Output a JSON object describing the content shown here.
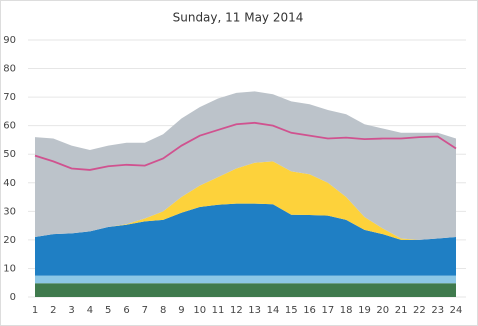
{
  "chart_data": {
    "type": "area",
    "stacked": true,
    "title": "Sunday, 11 May 2014",
    "x": [
      1,
      2,
      3,
      4,
      5,
      6,
      7,
      8,
      9,
      10,
      11,
      12,
      13,
      14,
      15,
      16,
      17,
      18,
      19,
      20,
      21,
      22,
      23,
      24
    ],
    "xlim": [
      1,
      24
    ],
    "xticks": [
      1,
      2,
      3,
      4,
      5,
      6,
      7,
      8,
      9,
      10,
      11,
      12,
      13,
      14,
      15,
      16,
      17,
      18,
      19,
      20,
      21,
      22,
      23,
      24
    ],
    "ylim": [
      0,
      90
    ],
    "yticks": [
      0,
      10,
      20,
      30,
      40,
      50,
      60,
      70,
      80,
      90
    ],
    "grid": true,
    "series": [
      {
        "color": "#3f7a4d",
        "values": [
          4.8,
          4.8,
          4.8,
          4.8,
          4.8,
          4.8,
          4.8,
          4.8,
          4.8,
          4.8,
          4.8,
          4.8,
          4.8,
          4.8,
          4.8,
          4.8,
          4.8,
          4.8,
          4.8,
          4.8,
          4.8,
          4.8,
          4.8,
          4.8
        ]
      },
      {
        "color": "#8cc7e6",
        "values": [
          2.7,
          2.7,
          2.7,
          2.7,
          2.7,
          2.7,
          2.7,
          2.7,
          2.7,
          2.7,
          2.7,
          2.7,
          2.7,
          2.7,
          2.7,
          2.7,
          2.7,
          2.7,
          2.7,
          2.7,
          2.7,
          2.7,
          2.7,
          2.7
        ]
      },
      {
        "color": "#1f7fc4",
        "values": [
          13.5,
          14.5,
          14.8,
          15.5,
          17,
          17.8,
          19,
          19.5,
          22,
          24,
          24.8,
          25.2,
          25.2,
          25,
          21.3,
          21.2,
          21,
          19.5,
          16,
          14.5,
          12.5,
          12.5,
          13,
          13.5
        ]
      },
      {
        "color": "#fdd23b",
        "values": [
          0,
          0,
          0,
          0,
          0,
          0.2,
          1,
          3,
          5.5,
          7.5,
          9.7,
          12.3,
          14.3,
          15,
          15.2,
          14.3,
          11.5,
          8,
          4.5,
          2,
          0.5,
          0,
          0,
          0
        ]
      },
      {
        "color": "#bcc3ca",
        "values": [
          35,
          33.5,
          30.7,
          28.5,
          28.5,
          28.5,
          26.5,
          27,
          27.5,
          27.5,
          27.5,
          26.5,
          25,
          23.5,
          24.5,
          24.5,
          25.5,
          29,
          32.5,
          35,
          37,
          37.5,
          37,
          34.5
        ]
      },
      {
        "type": "line",
        "color": "#d0528f",
        "values": [
          49.5,
          47.5,
          45,
          44.5,
          45.8,
          46.3,
          46,
          48.5,
          53,
          56.5,
          58.5,
          60.5,
          61,
          60,
          57.5,
          56.5,
          55.5,
          55.8,
          55.3,
          55.5,
          55.5,
          56,
          56.2,
          52
        ]
      }
    ]
  }
}
